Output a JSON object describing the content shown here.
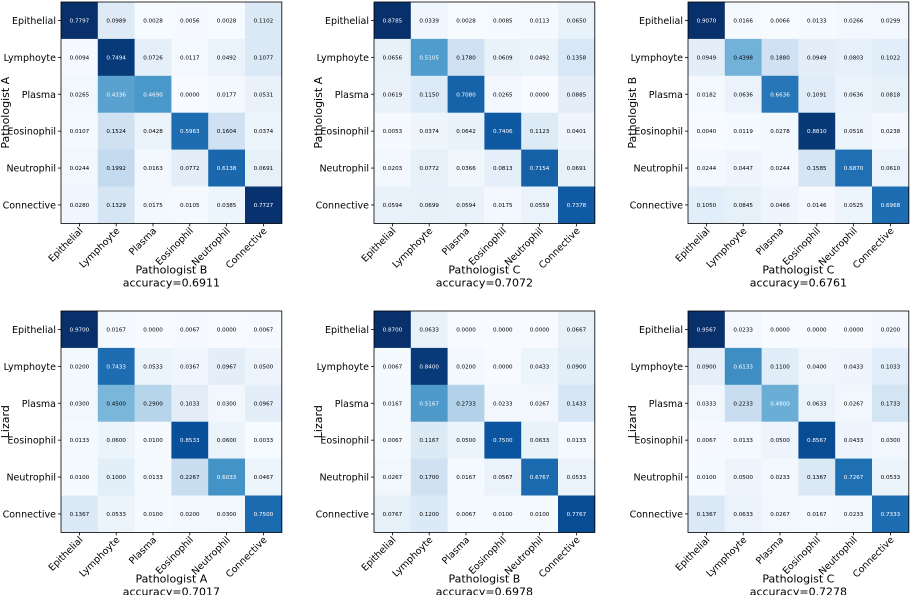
{
  "chart_data": [
    {
      "type": "heatmap",
      "ylabel": "Pathologist A",
      "xlabel": "Pathologist B",
      "accuracy_text": "accuracy=0.6911",
      "row_labels": [
        "Epithelial",
        "Lymphoyte",
        "Plasma",
        "Eosinophil",
        "Neutrophil",
        "Connective"
      ],
      "col_labels": [
        "Epithelial",
        "Lymphoyte",
        "Plasma",
        "Eosinophil",
        "Neutrophil",
        "Connective"
      ],
      "values": [
        [
          "0.7797",
          "0.0989",
          "0.0028",
          "0.0056",
          "0.0028",
          "0.1102"
        ],
        [
          "0.0094",
          "0.7494",
          "0.0726",
          "0.0117",
          "0.0492",
          "0.1077"
        ],
        [
          "0.0265",
          "0.4336",
          "0.4690",
          "0.0000",
          "0.0177",
          "0.0531"
        ],
        [
          "0.0107",
          "0.1524",
          "0.0428",
          "0.5963",
          "0.1604",
          "0.0374"
        ],
        [
          "0.0244",
          "0.1992",
          "0.0163",
          "0.0772",
          "0.6138",
          "0.0691"
        ],
        [
          "0.0280",
          "0.1329",
          "0.0175",
          "0.0105",
          "0.0385",
          "0.7727"
        ]
      ]
    },
    {
      "type": "heatmap",
      "ylabel": "Pathologist A",
      "xlabel": "Pathologist C",
      "accuracy_text": "accuracy=0.7072",
      "row_labels": [
        "Epithelial",
        "Lymphoyte",
        "Plasma",
        "Eosinophil",
        "Neutrophil",
        "Connective"
      ],
      "col_labels": [
        "Epithelial",
        "Lymphoyte",
        "Plasma",
        "Eosinophil",
        "Neutrophil",
        "Connective"
      ],
      "values": [
        [
          "0.8785",
          "0.0339",
          "0.0028",
          "0.0085",
          "0.0113",
          "0.0650"
        ],
        [
          "0.0656",
          "0.5105",
          "0.1780",
          "0.0609",
          "0.0492",
          "0.1358"
        ],
        [
          "0.0619",
          "0.1150",
          "0.7080",
          "0.0265",
          "0.0000",
          "0.0885"
        ],
        [
          "0.0053",
          "0.0374",
          "0.0642",
          "0.7406",
          "0.1123",
          "0.0401"
        ],
        [
          "0.0203",
          "0.0772",
          "0.0366",
          "0.0813",
          "0.7154",
          "0.0691"
        ],
        [
          "0.0594",
          "0.0699",
          "0.0594",
          "0.0175",
          "0.0559",
          "0.7378"
        ]
      ]
    },
    {
      "type": "heatmap",
      "ylabel": "Pathologist B",
      "xlabel": "Pathologist C",
      "accuracy_text": "accuracy=0.6761",
      "row_labels": [
        "Epithelial",
        "Lymphoyte",
        "Plasma",
        "Eosinophil",
        "Neutrophil",
        "Connective"
      ],
      "col_labels": [
        "Epithelial",
        "Lymphoyte",
        "Plasma",
        "Eosinophil",
        "Neutrophil",
        "Connective"
      ],
      "values": [
        [
          "0.9070",
          "0.0166",
          "0.0066",
          "0.0133",
          "0.0266",
          "0.0299"
        ],
        [
          "0.0949",
          "0.4398",
          "0.1880",
          "0.0949",
          "0.0803",
          "0.1022"
        ],
        [
          "0.0182",
          "0.0636",
          "0.6636",
          "0.1091",
          "0.0636",
          "0.0818"
        ],
        [
          "0.0040",
          "0.0119",
          "0.0278",
          "0.8810",
          "0.0516",
          "0.0238"
        ],
        [
          "0.0244",
          "0.0447",
          "0.0244",
          "0.1585",
          "0.6870",
          "0.0610"
        ],
        [
          "0.1050",
          "0.0845",
          "0.0466",
          "0.0146",
          "0.0525",
          "0.6968"
        ]
      ]
    },
    {
      "type": "heatmap",
      "ylabel": "Lizard",
      "xlabel": "Pathologist A",
      "accuracy_text": "accuracy=0.7017",
      "row_labels": [
        "Epithelial",
        "Lymphoyte",
        "Plasma",
        "Eosinophil",
        "Neutrophil",
        "Connective"
      ],
      "col_labels": [
        "Epithelial",
        "Lymphoyte",
        "Plasma",
        "Eosinophil",
        "Neutrophil",
        "Connective"
      ],
      "values": [
        [
          "0.9700",
          "0.0167",
          "0.0000",
          "0.0067",
          "0.0000",
          "0.0067"
        ],
        [
          "0.0200",
          "0.7433",
          "0.0533",
          "0.0367",
          "0.0967",
          "0.0500"
        ],
        [
          "0.0300",
          "0.4500",
          "0.2900",
          "0.1033",
          "0.0300",
          "0.0967"
        ],
        [
          "0.0133",
          "0.0600",
          "0.0100",
          "0.8533",
          "0.0600",
          "0.0033"
        ],
        [
          "0.0100",
          "0.1000",
          "0.0133",
          "0.2267",
          "0.6033",
          "0.0467"
        ],
        [
          "0.1367",
          "0.0533",
          "0.0100",
          "0.0200",
          "0.0300",
          "0.7500"
        ]
      ]
    },
    {
      "type": "heatmap",
      "ylabel": "Lizard",
      "xlabel": "Pathologist B",
      "accuracy_text": "accuracy=0.6978",
      "row_labels": [
        "Epithelial",
        "Lymphoyte",
        "Plasma",
        "Eosinophil",
        "Neutrophil",
        "Connective"
      ],
      "col_labels": [
        "Epithelial",
        "Lymphoyte",
        "Plasma",
        "Eosinophil",
        "Neutrophil",
        "Connective"
      ],
      "values": [
        [
          "0.8700",
          "0.0633",
          "0.0000",
          "0.0000",
          "0.0000",
          "0.0667"
        ],
        [
          "0.0067",
          "0.8400",
          "0.0200",
          "0.0000",
          "0.0433",
          "0.0900"
        ],
        [
          "0.0167",
          "0.5167",
          "0.2733",
          "0.0233",
          "0.0267",
          "0.1433"
        ],
        [
          "0.0067",
          "0.1167",
          "0.0500",
          "0.7500",
          "0.0633",
          "0.0133"
        ],
        [
          "0.0267",
          "0.1700",
          "0.0167",
          "0.0567",
          "0.6767",
          "0.0533"
        ],
        [
          "0.0767",
          "0.1200",
          "0.0067",
          "0.0100",
          "0.0100",
          "0.7767"
        ]
      ]
    },
    {
      "type": "heatmap",
      "ylabel": "Lizard",
      "xlabel": "Pathologist C",
      "accuracy_text": "accuracy=0.7278",
      "row_labels": [
        "Epithelial",
        "Lymphoyte",
        "Plasma",
        "Eosinophil",
        "Neutrophil",
        "Connective"
      ],
      "col_labels": [
        "Epithelial",
        "Lymphoyte",
        "Plasma",
        "Eosinophil",
        "Neutrophil",
        "Connective"
      ],
      "values": [
        [
          "0.9567",
          "0.0233",
          "0.0000",
          "0.0000",
          "0.0000",
          "0.0200"
        ],
        [
          "0.0900",
          "0.6133",
          "0.1100",
          "0.0400",
          "0.0433",
          "0.1033"
        ],
        [
          "0.0333",
          "0.2233",
          "0.4800",
          "0.0633",
          "0.0267",
          "0.1733"
        ],
        [
          "0.0067",
          "0.0133",
          "0.0500",
          "0.8567",
          "0.0433",
          "0.0300"
        ],
        [
          "0.0100",
          "0.0500",
          "0.0233",
          "0.1367",
          "0.7267",
          "0.0533"
        ],
        [
          "0.1367",
          "0.0633",
          "0.0267",
          "0.0167",
          "0.0233",
          "0.7333"
        ]
      ]
    }
  ],
  "colors": {
    "low": "#f7fbff",
    "high": "#08306b",
    "text_dark": "#000000",
    "text_light": "#ffffff",
    "frame": "#000000"
  }
}
